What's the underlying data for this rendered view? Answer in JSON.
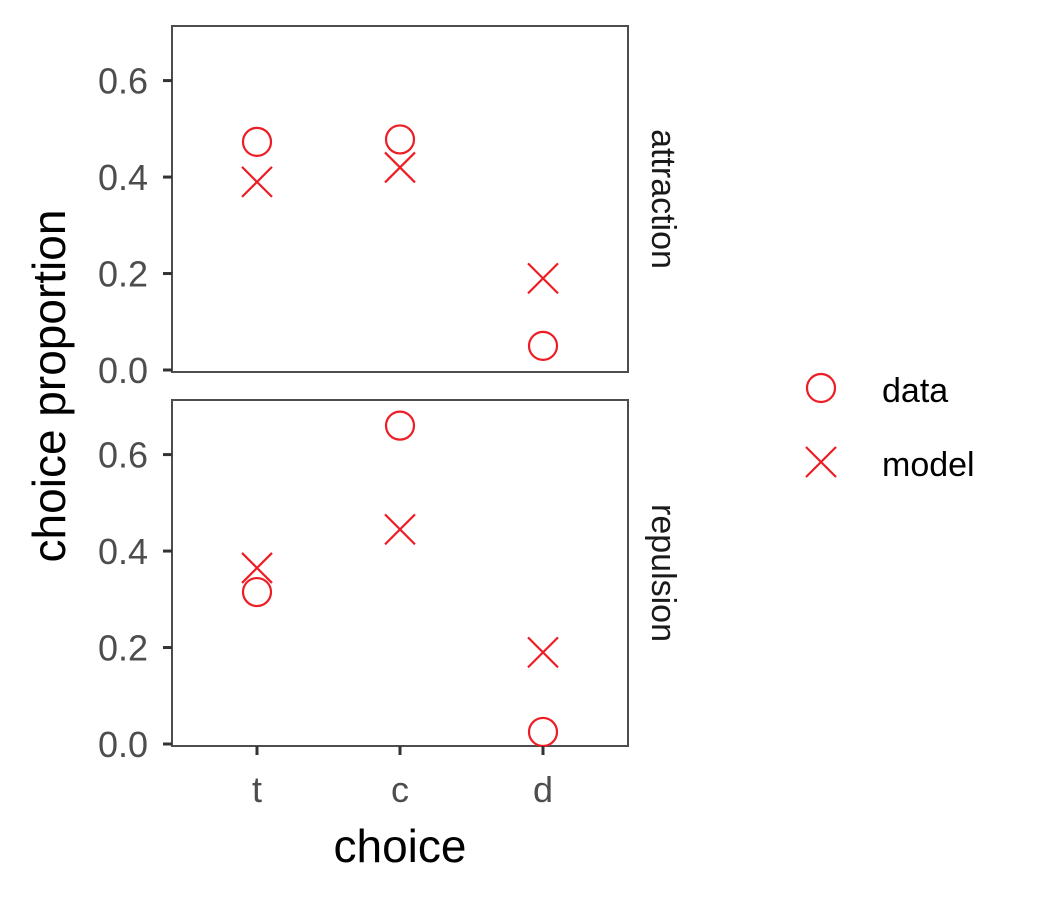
{
  "chart_data": {
    "type": "scatter",
    "xlabel": "choice",
    "ylabel": "choice proportion",
    "categories": [
      "t",
      "c",
      "d"
    ],
    "ylim": [
      0,
      0.68
    ],
    "yticks": [
      0.0,
      0.2,
      0.4,
      0.6
    ],
    "ytick_labels": [
      "0.0",
      "0.2",
      "0.4",
      "0.6"
    ],
    "grid": false,
    "legend_position": "right",
    "color": "#ee1c24",
    "legend": [
      {
        "name": "data",
        "shape": "circle"
      },
      {
        "name": "model",
        "shape": "x"
      }
    ],
    "facets": [
      {
        "label": "attraction",
        "series": [
          {
            "name": "data",
            "values": [
              0.473,
              0.478,
              0.05
            ]
          },
          {
            "name": "model",
            "values": [
              0.39,
              0.42,
              0.19
            ]
          }
        ]
      },
      {
        "label": "repulsion",
        "series": [
          {
            "name": "data",
            "values": [
              0.315,
              0.66,
              0.025
            ]
          },
          {
            "name": "model",
            "values": [
              0.365,
              0.445,
              0.19
            ]
          }
        ]
      }
    ]
  }
}
